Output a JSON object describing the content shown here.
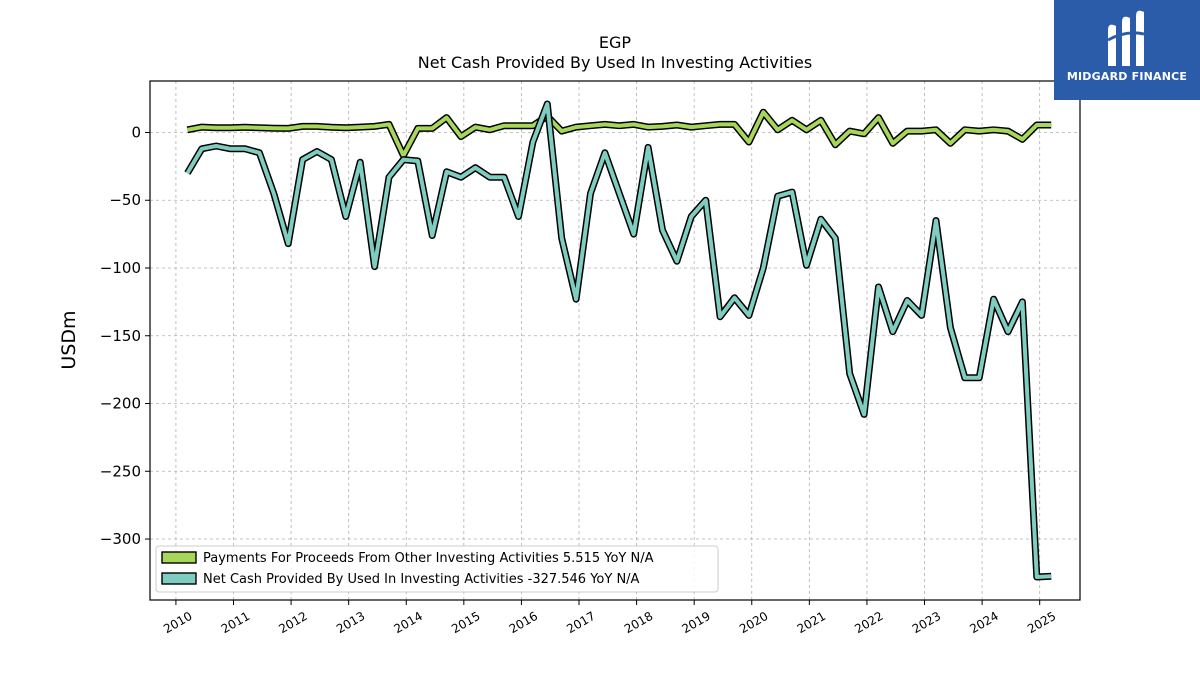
{
  "brand": {
    "name": "MIDGARD FINANCE",
    "bg_color": "#2a5caa"
  },
  "chart_data": {
    "type": "line",
    "title": "EGP",
    "subtitle": "Net Cash Provided By Used In Investing Activities",
    "xlabel": "",
    "ylabel": "USDm",
    "xlim": [
      2009.55,
      2025.7
    ],
    "ylim": [
      -345,
      38
    ],
    "xticks": [
      2010,
      2011,
      2012,
      2013,
      2014,
      2015,
      2016,
      2017,
      2018,
      2019,
      2020,
      2021,
      2022,
      2023,
      2024,
      2025
    ],
    "yticks": [
      0,
      -50,
      -100,
      -150,
      -200,
      -250,
      -300
    ],
    "ytick_labels": [
      "0",
      "−50",
      "−100",
      "−150",
      "−200",
      "−250",
      "−300"
    ],
    "grid": true,
    "legend_position": "lower-left",
    "series": [
      {
        "name": "Payments For Proceeds From Other Investing Activities",
        "legend_label": "Payments For Proceeds From Other Investing Activities  5.515 YoY N/A",
        "color": "#a6d75b",
        "x": [
          2010.2,
          2010.45,
          2010.7,
          2010.95,
          2011.2,
          2011.45,
          2011.7,
          2011.95,
          2012.2,
          2012.45,
          2012.7,
          2012.95,
          2013.2,
          2013.45,
          2013.7,
          2013.95,
          2014.2,
          2014.45,
          2014.7,
          2014.95,
          2015.2,
          2015.45,
          2015.7,
          2015.95,
          2016.2,
          2016.45,
          2016.7,
          2016.95,
          2017.2,
          2017.45,
          2017.7,
          2017.95,
          2018.2,
          2018.45,
          2018.7,
          2018.95,
          2019.2,
          2019.45,
          2019.7,
          2019.95,
          2020.2,
          2020.45,
          2020.7,
          2020.95,
          2021.2,
          2021.45,
          2021.7,
          2021.95,
          2022.2,
          2022.45,
          2022.7,
          2022.95,
          2023.2,
          2023.45,
          2023.7,
          2023.95,
          2024.2,
          2024.45,
          2024.7,
          2024.95,
          2025.2
        ],
        "values": [
          2,
          4,
          3.5,
          3.5,
          3.8,
          3.5,
          3.2,
          3,
          4.5,
          4.5,
          3.8,
          3.5,
          4,
          4.5,
          6,
          -17,
          3,
          3,
          11,
          -3,
          4,
          2,
          5,
          5,
          5,
          12,
          1,
          4,
          5,
          6,
          5,
          6,
          4,
          4.5,
          5.5,
          4,
          5,
          6,
          6,
          -7,
          15,
          2,
          9,
          2,
          9,
          -9,
          1,
          -1,
          11,
          -8,
          1,
          1,
          2,
          -8,
          2,
          1,
          2,
          1,
          -5,
          5.515,
          5.515
        ]
      },
      {
        "name": "Net Cash Provided By Used In Investing Activities",
        "legend_label": "Net Cash Provided By Used In Investing Activities  -327.546 YoY N/A",
        "color": "#7ecdc0",
        "x": [
          2010.2,
          2010.45,
          2010.7,
          2010.95,
          2011.2,
          2011.45,
          2011.7,
          2011.95,
          2012.2,
          2012.45,
          2012.7,
          2012.95,
          2013.2,
          2013.45,
          2013.7,
          2013.95,
          2014.2,
          2014.45,
          2014.7,
          2014.95,
          2015.2,
          2015.45,
          2015.7,
          2015.95,
          2016.2,
          2016.45,
          2016.7,
          2016.95,
          2017.2,
          2017.45,
          2017.7,
          2017.95,
          2018.2,
          2018.45,
          2018.7,
          2018.95,
          2019.2,
          2019.45,
          2019.7,
          2019.95,
          2020.2,
          2020.45,
          2020.7,
          2020.95,
          2021.2,
          2021.45,
          2021.7,
          2021.95,
          2022.2,
          2022.45,
          2022.7,
          2022.95,
          2023.2,
          2023.45,
          2023.7,
          2023.95,
          2024.2,
          2024.45,
          2024.7,
          2024.95,
          2025.2
        ],
        "values": [
          -30,
          -12,
          -10,
          -12,
          -12,
          -15,
          -45,
          -82,
          -20,
          -14,
          -20,
          -62,
          -22,
          -99,
          -33,
          -20,
          -21,
          -76,
          -29,
          -33,
          -26,
          -33,
          -33,
          -62,
          -7,
          21,
          -78,
          -123,
          -45,
          -15,
          -45,
          -75,
          -11,
          -72,
          -95,
          -62,
          -50,
          -136,
          -122,
          -135,
          -100,
          -47,
          -44,
          -98,
          -64,
          -78,
          -178,
          -208,
          -114,
          -147,
          -124,
          -135,
          -65,
          -144,
          -181,
          -181,
          -123,
          -147,
          -125,
          -328,
          -327.546
        ]
      }
    ]
  }
}
